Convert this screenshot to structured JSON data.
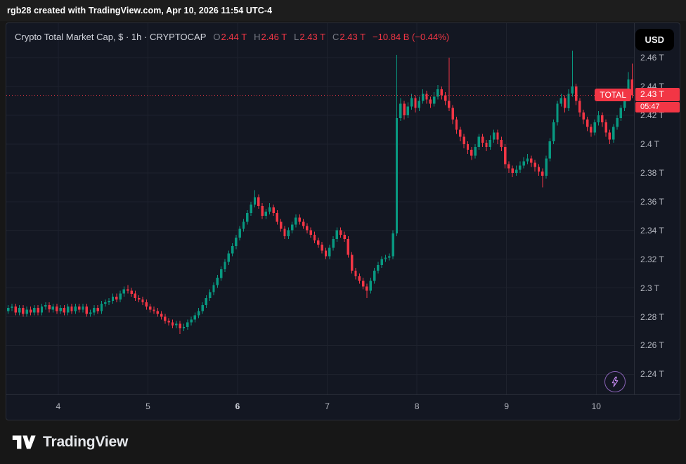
{
  "title_bar": {
    "text": "rgb28 created with TradingView.com, Apr 10, 2026 11:54 UTC-4"
  },
  "legend": {
    "symbol_title": "Crypto Total Market Cap, $ · 1h · CRYPTOCAP",
    "o_label": "O",
    "o_value": "2.44 T",
    "h_label": "H",
    "h_value": "2.46 T",
    "l_label": "L",
    "l_value": "2.43 T",
    "c_label": "C",
    "c_value": "2.43 T",
    "change": "−10.84 B (−0.44%)"
  },
  "currency_button": {
    "label": "USD"
  },
  "price_axis": {
    "labels": [
      "2.46 T",
      "2.44 T",
      "2.42 T",
      "2.4 T",
      "2.38 T",
      "2.36 T",
      "2.34 T",
      "2.32 T",
      "2.3 T",
      "2.28 T",
      "2.26 T",
      "2.24 T"
    ],
    "current": {
      "tag": "TOTAL",
      "price": "2.43 T",
      "countdown": "05:47"
    }
  },
  "time_axis": {
    "ticks": [
      {
        "label": "4",
        "index": 13.4,
        "bold": false
      },
      {
        "label": "5",
        "index": 37.4,
        "bold": false
      },
      {
        "label": "6",
        "index": 61.4,
        "bold": true
      },
      {
        "label": "7",
        "index": 85.4,
        "bold": false
      },
      {
        "label": "8",
        "index": 109.4,
        "bold": false
      },
      {
        "label": "9",
        "index": 133.4,
        "bold": false
      },
      {
        "label": "10",
        "index": 157.4,
        "bold": false
      }
    ]
  },
  "footer": {
    "brand": "TradingView"
  },
  "colors": {
    "up": "#089981",
    "down": "#f23645",
    "accent_red": "#f23645",
    "background": "#131722",
    "grid": "#1e222d",
    "axis_text": "#b2b5be"
  },
  "chart_data": {
    "type": "candlestick",
    "title": "Crypto Total Market Cap, $ · 1h · CRYPTOCAP",
    "interval": "1h",
    "y_unit": "USD trillions",
    "x_axis_days_april": [
      4,
      5,
      6,
      7,
      8,
      9,
      10
    ],
    "price_min": 2.226,
    "price_max": 2.484,
    "grid_levels": [
      2.46,
      2.44,
      2.42,
      2.4,
      2.38,
      2.36,
      2.34,
      2.32,
      2.3,
      2.28,
      2.26,
      2.24
    ],
    "current_price": 2.434,
    "change_billions": -10.84,
    "change_percent": -0.44,
    "candles": [
      [
        2.284,
        2.288,
        2.282,
        2.286
      ],
      [
        2.286,
        2.289,
        2.284,
        2.287
      ],
      [
        2.287,
        2.289,
        2.281,
        2.283
      ],
      [
        2.283,
        2.288,
        2.281,
        2.286
      ],
      [
        2.286,
        2.288,
        2.28,
        2.282
      ],
      [
        2.282,
        2.287,
        2.28,
        2.285
      ],
      [
        2.285,
        2.287,
        2.281,
        2.283
      ],
      [
        2.283,
        2.288,
        2.281,
        2.286
      ],
      [
        2.286,
        2.288,
        2.281,
        2.283
      ],
      [
        2.283,
        2.289,
        2.281,
        2.287
      ],
      [
        2.287,
        2.29,
        2.285,
        2.288
      ],
      [
        2.288,
        2.29,
        2.283,
        2.285
      ],
      [
        2.285,
        2.289,
        2.283,
        2.287
      ],
      [
        2.287,
        2.289,
        2.282,
        2.284
      ],
      [
        2.284,
        2.288,
        2.282,
        2.286
      ],
      [
        2.286,
        2.288,
        2.281,
        2.283
      ],
      [
        2.283,
        2.289,
        2.281,
        2.287
      ],
      [
        2.287,
        2.289,
        2.282,
        2.284
      ],
      [
        2.284,
        2.289,
        2.282,
        2.287
      ],
      [
        2.287,
        2.289,
        2.283,
        2.285
      ],
      [
        2.285,
        2.289,
        2.283,
        2.287
      ],
      [
        2.287,
        2.289,
        2.28,
        2.282
      ],
      [
        2.282,
        2.285,
        2.28,
        2.283
      ],
      [
        2.283,
        2.288,
        2.281,
        2.286
      ],
      [
        2.286,
        2.288,
        2.282,
        2.284
      ],
      [
        2.284,
        2.291,
        2.282,
        2.289
      ],
      [
        2.289,
        2.292,
        2.287,
        2.29
      ],
      [
        2.29,
        2.293,
        2.288,
        2.291
      ],
      [
        2.291,
        2.296,
        2.289,
        2.294
      ],
      [
        2.294,
        2.296,
        2.29,
        2.292
      ],
      [
        2.292,
        2.298,
        2.29,
        2.296
      ],
      [
        2.296,
        2.301,
        2.294,
        2.299
      ],
      [
        2.299,
        2.302,
        2.296,
        2.298
      ],
      [
        2.298,
        2.3,
        2.294,
        2.296
      ],
      [
        2.296,
        2.298,
        2.291,
        2.293
      ],
      [
        2.293,
        2.295,
        2.29,
        2.292
      ],
      [
        2.292,
        2.294,
        2.288,
        2.29
      ],
      [
        2.29,
        2.292,
        2.285,
        2.287
      ],
      [
        2.287,
        2.289,
        2.283,
        2.285
      ],
      [
        2.285,
        2.287,
        2.282,
        2.284
      ],
      [
        2.284,
        2.286,
        2.28,
        2.282
      ],
      [
        2.282,
        2.284,
        2.278,
        2.28
      ],
      [
        2.28,
        2.282,
        2.275,
        2.277
      ],
      [
        2.277,
        2.279,
        2.274,
        2.276
      ],
      [
        2.276,
        2.278,
        2.272,
        2.274
      ],
      [
        2.274,
        2.277,
        2.272,
        2.275
      ],
      [
        2.275,
        2.277,
        2.268,
        2.272
      ],
      [
        2.272,
        2.275,
        2.27,
        2.273
      ],
      [
        2.273,
        2.278,
        2.271,
        2.276
      ],
      [
        2.276,
        2.28,
        2.274,
        2.278
      ],
      [
        2.278,
        2.283,
        2.276,
        2.281
      ],
      [
        2.281,
        2.286,
        2.279,
        2.284
      ],
      [
        2.284,
        2.29,
        2.282,
        2.288
      ],
      [
        2.288,
        2.295,
        2.286,
        2.293
      ],
      [
        2.293,
        2.299,
        2.291,
        2.297
      ],
      [
        2.297,
        2.304,
        2.295,
        2.302
      ],
      [
        2.302,
        2.309,
        2.3,
        2.307
      ],
      [
        2.307,
        2.315,
        2.305,
        2.313
      ],
      [
        2.313,
        2.32,
        2.311,
        2.318
      ],
      [
        2.318,
        2.326,
        2.316,
        2.324
      ],
      [
        2.324,
        2.331,
        2.322,
        2.329
      ],
      [
        2.329,
        2.337,
        2.327,
        2.335
      ],
      [
        2.335,
        2.343,
        2.333,
        2.341
      ],
      [
        2.341,
        2.348,
        2.339,
        2.346
      ],
      [
        2.346,
        2.354,
        2.344,
        2.352
      ],
      [
        2.352,
        2.36,
        2.35,
        2.358
      ],
      [
        2.358,
        2.368,
        2.356,
        2.363
      ],
      [
        2.363,
        2.365,
        2.355,
        2.357
      ],
      [
        2.357,
        2.359,
        2.348,
        2.35
      ],
      [
        2.35,
        2.355,
        2.348,
        2.353
      ],
      [
        2.353,
        2.359,
        2.351,
        2.356
      ],
      [
        2.356,
        2.358,
        2.35,
        2.352
      ],
      [
        2.352,
        2.354,
        2.344,
        2.346
      ],
      [
        2.346,
        2.348,
        2.339,
        2.341
      ],
      [
        2.341,
        2.343,
        2.334,
        2.336
      ],
      [
        2.336,
        2.342,
        2.334,
        2.34
      ],
      [
        2.34,
        2.346,
        2.338,
        2.344
      ],
      [
        2.344,
        2.351,
        2.342,
        2.349
      ],
      [
        2.349,
        2.351,
        2.344,
        2.346
      ],
      [
        2.346,
        2.348,
        2.341,
        2.343
      ],
      [
        2.343,
        2.345,
        2.338,
        2.34
      ],
      [
        2.34,
        2.342,
        2.335,
        2.337
      ],
      [
        2.337,
        2.339,
        2.331,
        2.333
      ],
      [
        2.333,
        2.335,
        2.328,
        2.33
      ],
      [
        2.33,
        2.332,
        2.324,
        2.326
      ],
      [
        2.326,
        2.328,
        2.32,
        2.322
      ],
      [
        2.322,
        2.33,
        2.32,
        2.328
      ],
      [
        2.328,
        2.336,
        2.326,
        2.334
      ],
      [
        2.334,
        2.342,
        2.332,
        2.34
      ],
      [
        2.34,
        2.342,
        2.335,
        2.337
      ],
      [
        2.337,
        2.339,
        2.332,
        2.334
      ],
      [
        2.334,
        2.336,
        2.321,
        2.323
      ],
      [
        2.323,
        2.325,
        2.31,
        2.312
      ],
      [
        2.312,
        2.314,
        2.306,
        2.308
      ],
      [
        2.308,
        2.31,
        2.303,
        2.305
      ],
      [
        2.305,
        2.307,
        2.299,
        2.301
      ],
      [
        2.301,
        2.303,
        2.293,
        2.298
      ],
      [
        2.298,
        2.307,
        2.296,
        2.305
      ],
      [
        2.305,
        2.314,
        2.303,
        2.312
      ],
      [
        2.312,
        2.318,
        2.31,
        2.316
      ],
      [
        2.316,
        2.322,
        2.314,
        2.32
      ],
      [
        2.32,
        2.323,
        2.318,
        2.321
      ],
      [
        2.321,
        2.324,
        2.319,
        2.322
      ],
      [
        2.322,
        2.34,
        2.32,
        2.338
      ],
      [
        2.338,
        2.462,
        2.336,
        2.418
      ],
      [
        2.418,
        2.432,
        2.416,
        2.428
      ],
      [
        2.428,
        2.43,
        2.417,
        2.42
      ],
      [
        2.42,
        2.429,
        2.418,
        2.426
      ],
      [
        2.426,
        2.435,
        2.424,
        2.432
      ],
      [
        2.432,
        2.434,
        2.422,
        2.425
      ],
      [
        2.425,
        2.433,
        2.423,
        2.43
      ],
      [
        2.43,
        2.438,
        2.428,
        2.435
      ],
      [
        2.435,
        2.437,
        2.428,
        2.431
      ],
      [
        2.431,
        2.433,
        2.425,
        2.428
      ],
      [
        2.428,
        2.436,
        2.426,
        2.433
      ],
      [
        2.433,
        2.441,
        2.431,
        2.438
      ],
      [
        2.438,
        2.44,
        2.431,
        2.434
      ],
      [
        2.434,
        2.436,
        2.427,
        2.43
      ],
      [
        2.43,
        2.46,
        2.423,
        2.425
      ],
      [
        2.425,
        2.427,
        2.414,
        2.417
      ],
      [
        2.417,
        2.419,
        2.407,
        2.41
      ],
      [
        2.41,
        2.412,
        2.402,
        2.405
      ],
      [
        2.405,
        2.407,
        2.397,
        2.4
      ],
      [
        2.4,
        2.402,
        2.393,
        2.396
      ],
      [
        2.396,
        2.398,
        2.389,
        2.392
      ],
      [
        2.392,
        2.4,
        2.39,
        2.398
      ],
      [
        2.398,
        2.407,
        2.396,
        2.405
      ],
      [
        2.405,
        2.407,
        2.398,
        2.401
      ],
      [
        2.401,
        2.403,
        2.395,
        2.398
      ],
      [
        2.398,
        2.406,
        2.396,
        2.403
      ],
      [
        2.403,
        2.41,
        2.401,
        2.408
      ],
      [
        2.408,
        2.41,
        2.4,
        2.403
      ],
      [
        2.403,
        2.405,
        2.395,
        2.398
      ],
      [
        2.398,
        2.4,
        2.383,
        2.386
      ],
      [
        2.386,
        2.388,
        2.38,
        2.383
      ],
      [
        2.383,
        2.385,
        2.377,
        2.38
      ],
      [
        2.38,
        2.385,
        2.378,
        2.382
      ],
      [
        2.382,
        2.388,
        2.38,
        2.385
      ],
      [
        2.385,
        2.391,
        2.383,
        2.388
      ],
      [
        2.388,
        2.393,
        2.386,
        2.39
      ],
      [
        2.39,
        2.392,
        2.384,
        2.387
      ],
      [
        2.387,
        2.389,
        2.381,
        2.384
      ],
      [
        2.384,
        2.386,
        2.378,
        2.381
      ],
      [
        2.381,
        2.383,
        2.37,
        2.378
      ],
      [
        2.378,
        2.392,
        2.376,
        2.39
      ],
      [
        2.39,
        2.404,
        2.388,
        2.402
      ],
      [
        2.402,
        2.417,
        2.4,
        2.415
      ],
      [
        2.415,
        2.43,
        2.413,
        2.428
      ],
      [
        2.428,
        2.435,
        2.426,
        2.432
      ],
      [
        2.432,
        2.434,
        2.422,
        2.425
      ],
      [
        2.425,
        2.438,
        2.423,
        2.435
      ],
      [
        2.435,
        2.465,
        2.433,
        2.44
      ],
      [
        2.44,
        2.442,
        2.427,
        2.43
      ],
      [
        2.43,
        2.432,
        2.419,
        2.422
      ],
      [
        2.422,
        2.424,
        2.414,
        2.417
      ],
      [
        2.417,
        2.419,
        2.409,
        2.412
      ],
      [
        2.412,
        2.414,
        2.405,
        2.408
      ],
      [
        2.408,
        2.417,
        2.406,
        2.415
      ],
      [
        2.415,
        2.423,
        2.413,
        2.42
      ],
      [
        2.42,
        2.422,
        2.412,
        2.415
      ],
      [
        2.415,
        2.417,
        2.405,
        2.408
      ],
      [
        2.408,
        2.41,
        2.4,
        2.403
      ],
      [
        2.403,
        2.414,
        2.401,
        2.412
      ],
      [
        2.412,
        2.42,
        2.41,
        2.418
      ],
      [
        2.418,
        2.427,
        2.416,
        2.425
      ],
      [
        2.425,
        2.434,
        2.423,
        2.432
      ],
      [
        2.432,
        2.45,
        2.43,
        2.445
      ],
      [
        2.445,
        2.456,
        2.432,
        2.434
      ]
    ]
  }
}
